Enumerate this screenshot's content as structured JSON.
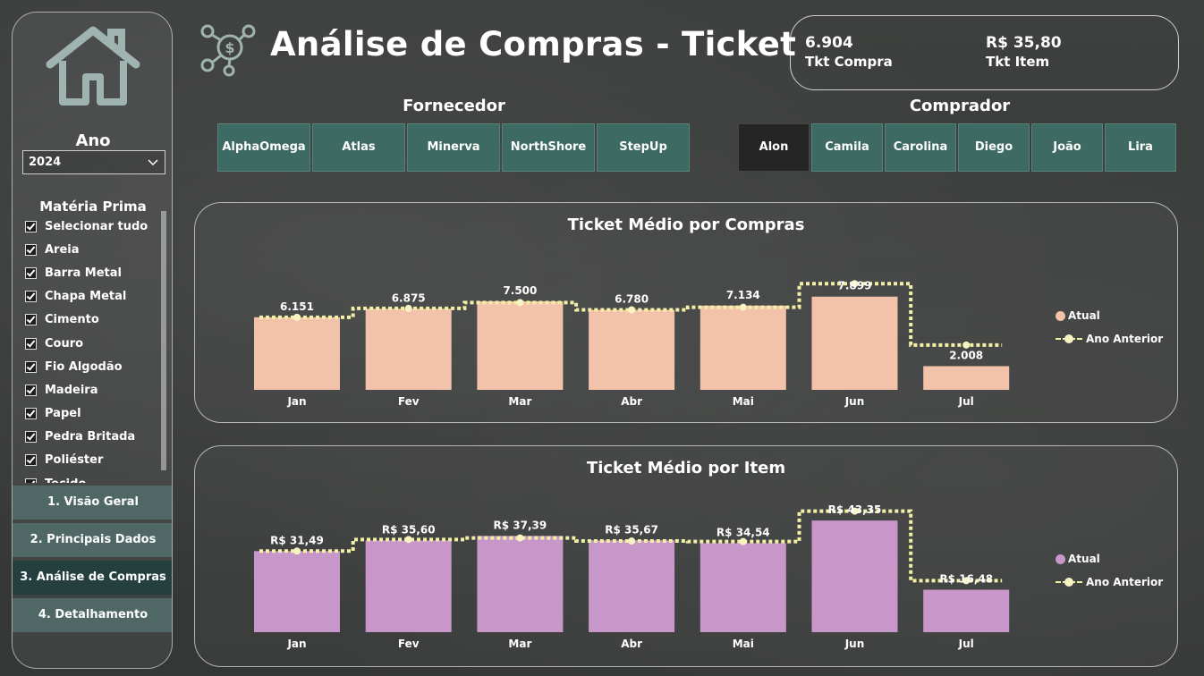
{
  "header": {
    "title": "Análise de Compras - Ticket",
    "icon": "dollar-network-icon"
  },
  "kpis": [
    {
      "value": "6.904",
      "label": "Tkt Compra"
    },
    {
      "value": "R$ 35,80",
      "label": "Tkt Item"
    }
  ],
  "sidebar": {
    "home_icon": "home-icon",
    "ano_label": "Ano",
    "ano_value": "2024",
    "materia_title": "Matéria Prima",
    "materia_items": [
      "Selecionar tudo",
      "Areia",
      "Barra Metal",
      "Chapa Metal",
      "Cimento",
      "Couro",
      "Fio Algodão",
      "Madeira",
      "Papel",
      "Pedra Britada",
      "Poliéster",
      "Tecido"
    ],
    "nav": [
      {
        "label": "1. Visão Geral",
        "active": false
      },
      {
        "label": "2. Principais Dados",
        "active": false
      },
      {
        "label": "3. Análise de Compras",
        "active": true
      },
      {
        "label": "4. Detalhamento",
        "active": false
      }
    ]
  },
  "fornecedor": {
    "title": "Fornecedor",
    "options": [
      "AlphaOmega",
      "Atlas",
      "Minerva",
      "NorthShore",
      "StepUp"
    ]
  },
  "comprador": {
    "title": "Comprador",
    "options": [
      "Alon",
      "Camila",
      "Carolina",
      "Diego",
      "João",
      "Lira"
    ],
    "selected": "Alon"
  },
  "colors": {
    "bar_compras": "#f3c2aa",
    "bar_item": "#c697c8",
    "line_prev": "#f3f0a6",
    "slicer": "#3d6a62",
    "nav": "#4f6866",
    "nav_active": "#243f3e"
  },
  "chart_data": [
    {
      "type": "bar",
      "title": "Ticket Médio por Compras",
      "categories": [
        "Jan",
        "Fev",
        "Mar",
        "Abr",
        "Mai",
        "Jun",
        "Jul"
      ],
      "series": [
        {
          "name": "Atual",
          "values": [
            6151,
            6875,
            7500,
            6780,
            7134,
            7899,
            2008
          ],
          "labels": [
            "6.151",
            "6.875",
            "7.500",
            "6.780",
            "7.134",
            "7.899",
            "2.008"
          ]
        },
        {
          "name": "Ano Anterior",
          "type": "line",
          "values": [
            6150,
            6900,
            7400,
            6780,
            7000,
            9000,
            3800
          ]
        }
      ],
      "legend": "right"
    },
    {
      "type": "bar",
      "title": "Ticket Médio por Item",
      "categories": [
        "Jan",
        "Fev",
        "Mar",
        "Abr",
        "Mai",
        "Jun",
        "Jul"
      ],
      "series": [
        {
          "name": "Atual",
          "values": [
            31.49,
            35.6,
            37.39,
            35.67,
            34.54,
            43.35,
            16.48
          ],
          "labels": [
            "R$ 31,49",
            "R$ 35,60",
            "R$ 37,39",
            "R$ 35,67",
            "R$ 34,54",
            "R$ 43,35",
            "R$ 16,48"
          ]
        },
        {
          "name": "Ano Anterior",
          "type": "line",
          "values": [
            31.5,
            36.0,
            36.6,
            35.4,
            35.2,
            47.0,
            20.0
          ]
        }
      ],
      "legend": "right"
    }
  ]
}
